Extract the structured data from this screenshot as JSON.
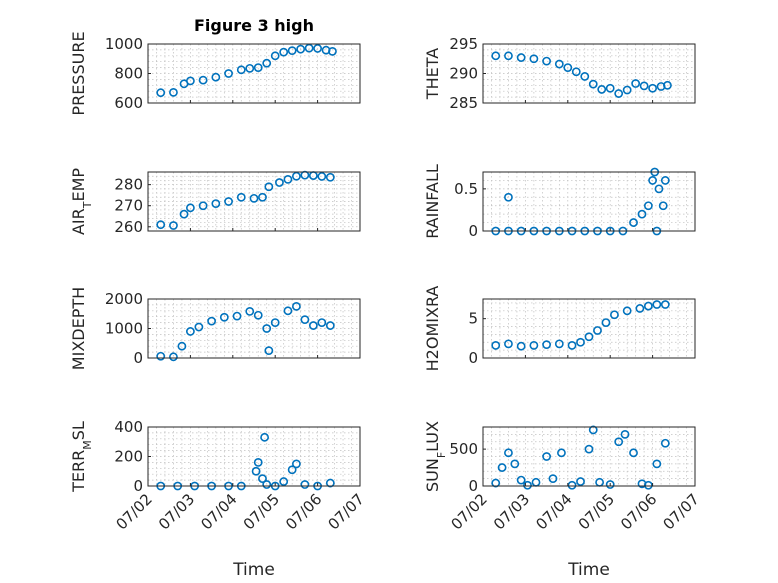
{
  "figure": {
    "title": "Figure 3 high"
  },
  "chart_data": [
    {
      "type": "scatter",
      "title": "Figure 3 high",
      "ylabel": "PRESSURE",
      "xlabel": "",
      "ylim": [
        600,
        1000
      ],
      "yticks": [
        600,
        800,
        1000
      ],
      "yticklabels": [
        "600",
        "800",
        "1000"
      ],
      "xlim": [
        2.0,
        7.0
      ],
      "xticks": [
        2,
        3,
        4,
        5,
        6,
        7
      ],
      "xticklabels": [],
      "points": [
        [
          2.3,
          670
        ],
        [
          2.6,
          672
        ],
        [
          2.85,
          730
        ],
        [
          3.0,
          750
        ],
        [
          3.3,
          755
        ],
        [
          3.6,
          775
        ],
        [
          3.9,
          800
        ],
        [
          4.2,
          825
        ],
        [
          4.4,
          835
        ],
        [
          4.6,
          840
        ],
        [
          4.8,
          870
        ],
        [
          5.0,
          920
        ],
        [
          5.2,
          945
        ],
        [
          5.4,
          955
        ],
        [
          5.6,
          965
        ],
        [
          5.8,
          972
        ],
        [
          6.0,
          970
        ],
        [
          6.2,
          958
        ],
        [
          6.35,
          950
        ]
      ]
    },
    {
      "type": "scatter",
      "title": "",
      "ylabel": "THETA",
      "xlabel": "",
      "ylim": [
        285,
        295
      ],
      "yticks": [
        285,
        290,
        295
      ],
      "yticklabels": [
        "285",
        "290",
        "295"
      ],
      "xlim": [
        2.0,
        7.0
      ],
      "xticks": [
        2,
        3,
        4,
        5,
        6,
        7
      ],
      "xticklabels": [],
      "points": [
        [
          2.3,
          293
        ],
        [
          2.6,
          293
        ],
        [
          2.9,
          292.7
        ],
        [
          3.2,
          292.5
        ],
        [
          3.5,
          292.1
        ],
        [
          3.8,
          291.6
        ],
        [
          4.0,
          291
        ],
        [
          4.2,
          290.3
        ],
        [
          4.4,
          289.5
        ],
        [
          4.6,
          288.2
        ],
        [
          4.8,
          287.3
        ],
        [
          5.0,
          287.5
        ],
        [
          5.2,
          286.6
        ],
        [
          5.4,
          287.2
        ],
        [
          5.6,
          288.3
        ],
        [
          5.8,
          287.9
        ],
        [
          6.0,
          287.5
        ],
        [
          6.2,
          287.8
        ],
        [
          6.35,
          288
        ]
      ]
    },
    {
      "type": "scatter",
      "title": "",
      "ylabel": "AIR_TEMP",
      "xlabel": "",
      "ylim": [
        258,
        286
      ],
      "yticks": [
        260,
        270,
        280
      ],
      "yticklabels": [
        "260",
        "270",
        "280"
      ],
      "xlim": [
        2.0,
        7.0
      ],
      "xticks": [
        2,
        3,
        4,
        5,
        6,
        7
      ],
      "xticklabels": [],
      "points": [
        [
          2.3,
          261
        ],
        [
          2.6,
          260.6
        ],
        [
          2.85,
          266
        ],
        [
          3.0,
          269
        ],
        [
          3.3,
          270
        ],
        [
          3.6,
          271
        ],
        [
          3.9,
          272
        ],
        [
          4.2,
          274
        ],
        [
          4.5,
          273.5
        ],
        [
          4.7,
          274
        ],
        [
          4.85,
          279
        ],
        [
          5.1,
          281
        ],
        [
          5.3,
          282.5
        ],
        [
          5.5,
          284
        ],
        [
          5.7,
          284.5
        ],
        [
          5.9,
          284.3
        ],
        [
          6.1,
          283.9
        ],
        [
          6.3,
          283.5
        ]
      ]
    },
    {
      "type": "scatter",
      "title": "",
      "ylabel": "RAINFALL",
      "xlabel": "",
      "ylim": [
        0,
        0.7
      ],
      "yticks": [
        0,
        0.5
      ],
      "yticklabels": [
        "0",
        "0.5"
      ],
      "xlim": [
        2.0,
        7.0
      ],
      "xticks": [
        2,
        3,
        4,
        5,
        6,
        7
      ],
      "xticklabels": [],
      "points": [
        [
          2.3,
          0
        ],
        [
          2.6,
          0
        ],
        [
          2.6,
          0.4
        ],
        [
          2.9,
          0
        ],
        [
          3.2,
          0
        ],
        [
          3.5,
          0
        ],
        [
          3.8,
          0
        ],
        [
          4.1,
          0
        ],
        [
          4.4,
          0
        ],
        [
          4.7,
          0
        ],
        [
          5.0,
          0
        ],
        [
          5.3,
          0
        ],
        [
          5.55,
          0.1
        ],
        [
          5.75,
          0.2
        ],
        [
          5.9,
          0.3
        ],
        [
          6.0,
          0.6
        ],
        [
          6.05,
          0.7
        ],
        [
          6.15,
          0.5
        ],
        [
          6.25,
          0.3
        ],
        [
          6.3,
          0.6
        ],
        [
          6.1,
          0
        ]
      ]
    },
    {
      "type": "scatter",
      "title": "",
      "ylabel": "MIXDEPTH",
      "xlabel": "",
      "ylim": [
        0,
        2000
      ],
      "yticks": [
        0,
        1000,
        2000
      ],
      "yticklabels": [
        "0",
        "1000",
        "2000"
      ],
      "xlim": [
        2.0,
        7.0
      ],
      "xticks": [
        2,
        3,
        4,
        5,
        6,
        7
      ],
      "xticklabels": [],
      "points": [
        [
          2.3,
          60
        ],
        [
          2.6,
          40
        ],
        [
          2.8,
          400
        ],
        [
          3.0,
          900
        ],
        [
          3.2,
          1050
        ],
        [
          3.5,
          1250
        ],
        [
          3.8,
          1380
        ],
        [
          4.1,
          1420
        ],
        [
          4.4,
          1580
        ],
        [
          4.6,
          1450
        ],
        [
          4.8,
          1000
        ],
        [
          4.85,
          250
        ],
        [
          5.0,
          1200
        ],
        [
          5.3,
          1600
        ],
        [
          5.5,
          1750
        ],
        [
          5.7,
          1300
        ],
        [
          5.9,
          1100
        ],
        [
          6.1,
          1200
        ],
        [
          6.3,
          1100
        ]
      ]
    },
    {
      "type": "scatter",
      "title": "",
      "ylabel": "H2OMIXRA",
      "xlabel": "",
      "ylim": [
        0,
        7.5
      ],
      "yticks": [
        0,
        5
      ],
      "yticklabels": [
        "0",
        "5"
      ],
      "xlim": [
        2.0,
        7.0
      ],
      "xticks": [
        2,
        3,
        4,
        5,
        6,
        7
      ],
      "xticklabels": [],
      "points": [
        [
          2.3,
          1.6
        ],
        [
          2.6,
          1.8
        ],
        [
          2.9,
          1.5
        ],
        [
          3.2,
          1.6
        ],
        [
          3.5,
          1.7
        ],
        [
          3.8,
          1.8
        ],
        [
          4.1,
          1.6
        ],
        [
          4.3,
          2
        ],
        [
          4.5,
          2.7
        ],
        [
          4.7,
          3.5
        ],
        [
          4.9,
          4.5
        ],
        [
          5.1,
          5.5
        ],
        [
          5.4,
          6
        ],
        [
          5.7,
          6.3
        ],
        [
          5.9,
          6.6
        ],
        [
          6.1,
          6.8
        ],
        [
          6.3,
          6.8
        ]
      ]
    },
    {
      "type": "scatter",
      "title": "",
      "ylabel": "TERR_MSL",
      "xlabel": "Time",
      "ylim": [
        0,
        400
      ],
      "yticks": [
        0,
        200,
        400
      ],
      "yticklabels": [
        "0",
        "200",
        "400"
      ],
      "xlim": [
        2.0,
        7.0
      ],
      "xticks": [
        2,
        3,
        4,
        5,
        6,
        7
      ],
      "xticklabels": [
        "07/02",
        "07/03",
        "07/04",
        "07/05",
        "07/06",
        "07/07"
      ],
      "points": [
        [
          2.3,
          0
        ],
        [
          2.7,
          0
        ],
        [
          3.1,
          0
        ],
        [
          3.5,
          0
        ],
        [
          3.9,
          0
        ],
        [
          4.2,
          0
        ],
        [
          4.55,
          100
        ],
        [
          4.6,
          160
        ],
        [
          4.7,
          50
        ],
        [
          4.75,
          330
        ],
        [
          4.8,
          10
        ],
        [
          5.0,
          0
        ],
        [
          5.2,
          30
        ],
        [
          5.4,
          110
        ],
        [
          5.5,
          150
        ],
        [
          5.7,
          10
        ],
        [
          6.0,
          0
        ],
        [
          6.3,
          20
        ]
      ]
    },
    {
      "type": "scatter",
      "title": "",
      "ylabel": "SUN_FLUX",
      "xlabel": "Time",
      "ylim": [
        0,
        800
      ],
      "yticks": [
        0,
        500
      ],
      "yticklabels": [
        "0",
        "500"
      ],
      "xlim": [
        2.0,
        7.0
      ],
      "xticks": [
        2,
        3,
        4,
        5,
        6,
        7
      ],
      "xticklabels": [
        "07/02",
        "07/03",
        "07/04",
        "07/05",
        "07/06",
        "07/07"
      ],
      "points": [
        [
          2.3,
          40
        ],
        [
          2.45,
          250
        ],
        [
          2.6,
          450
        ],
        [
          2.75,
          300
        ],
        [
          2.9,
          80
        ],
        [
          3.05,
          10
        ],
        [
          3.25,
          50
        ],
        [
          3.5,
          400
        ],
        [
          3.65,
          100
        ],
        [
          3.85,
          450
        ],
        [
          4.1,
          10
        ],
        [
          4.3,
          60
        ],
        [
          4.5,
          500
        ],
        [
          4.6,
          760
        ],
        [
          4.75,
          50
        ],
        [
          5.0,
          20
        ],
        [
          5.2,
          600
        ],
        [
          5.35,
          700
        ],
        [
          5.55,
          450
        ],
        [
          5.75,
          30
        ],
        [
          5.9,
          10
        ],
        [
          6.1,
          300
        ],
        [
          6.3,
          580
        ]
      ]
    }
  ]
}
